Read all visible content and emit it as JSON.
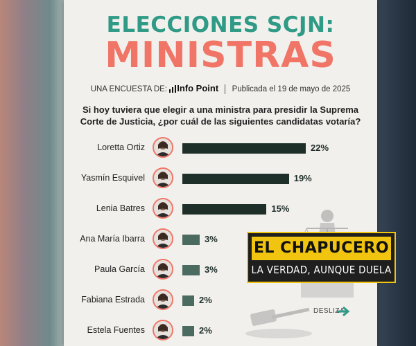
{
  "header": {
    "title_line1": "ELECCIONES SCJN:",
    "title_line2": "MINISTRAS",
    "survey_prefix": "UNA ENCUESTA DE:",
    "brand": "Info Point",
    "published": "Publicada el 19 de mayo de 2025"
  },
  "question": "Si hoy tuviera que elegir a una ministra para presidir la Suprema Corte de Justicia, ¿por cuál de las siguientes candidatas votaría?",
  "chart_data": {
    "type": "bar",
    "orientation": "horizontal",
    "categories": [
      "Loretta Ortiz",
      "Yasmín Esquivel",
      "Lenia Batres",
      "Ana María Ibarra",
      "Paula García",
      "Fabiana Estrada",
      "Estela Fuentes"
    ],
    "values": [
      22,
      19,
      15,
      3,
      3,
      2,
      2
    ],
    "value_labels": [
      "22%",
      "19%",
      "15%",
      "3%",
      "3%",
      "2%",
      "2%"
    ],
    "unit": "%",
    "colors": {
      "top_bars": "#1e2f2a",
      "small_bars": "#4b6a60",
      "title_green": "#2f9a86",
      "title_coral": "#f07567"
    }
  },
  "footer": {
    "swipe_label": "DESLIZA"
  },
  "watermark": {
    "line1": "EL CHAPUCERO",
    "line2": "LA VERDAD, AUNQUE DUELA"
  }
}
